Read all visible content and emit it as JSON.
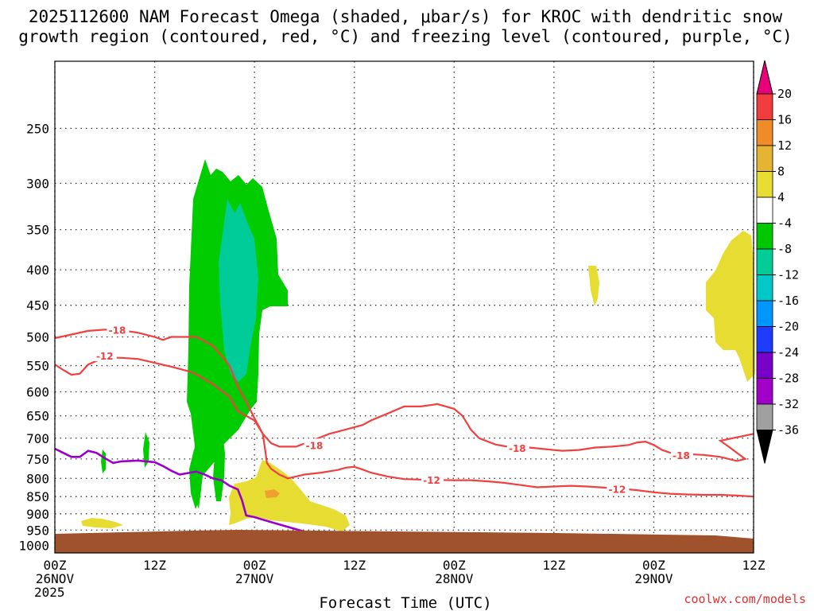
{
  "colors": {
    "ground": "#a0522d",
    "omega_dk_green": "#00cc00",
    "omega_teal": "#00cc99",
    "omega_yellow": "#e6dc32",
    "omega_orange": "#f0a030",
    "dgz_red": "#f04040",
    "freezing_purple": "#9a00c8"
  },
  "chart_data": {
    "type": "contour",
    "title": [
      "2025112600 NAM Forecast Omega (shaded, μbar/s) for KROC with dendritic snow",
      "growth region (contoured, red, °C) and freezing level (contoured, purple, °C)"
    ],
    "xlabel": "Forecast Time (UTC)",
    "ylabel": "",
    "credit": "coolwx.com/models",
    "y_axis": {
      "scale": "log-pressure",
      "ticks": [
        250,
        300,
        350,
        400,
        450,
        500,
        550,
        600,
        650,
        700,
        750,
        800,
        850,
        900,
        950,
        1000
      ],
      "range": [
        200,
        1025
      ]
    },
    "x_axis": {
      "range_hours": [
        0,
        84
      ],
      "ticks": [
        {
          "hour": 0,
          "line1": "00Z",
          "line2": "26NOV",
          "line3": "2025"
        },
        {
          "hour": 12,
          "line1": "12Z",
          "line2": "",
          "line3": ""
        },
        {
          "hour": 24,
          "line1": "00Z",
          "line2": "27NOV",
          "line3": ""
        },
        {
          "hour": 36,
          "line1": "12Z",
          "line2": "",
          "line3": ""
        },
        {
          "hour": 48,
          "line1": "00Z",
          "line2": "28NOV",
          "line3": ""
        },
        {
          "hour": 60,
          "line1": "12Z",
          "line2": "",
          "line3": ""
        },
        {
          "hour": 72,
          "line1": "00Z",
          "line2": "29NOV",
          "line3": ""
        },
        {
          "hour": 84,
          "line1": "12Z",
          "line2": "",
          "line3": ""
        }
      ]
    },
    "colorbar": {
      "labels": [
        "20",
        "16",
        "12",
        "8",
        "4",
        "-4",
        "-8",
        "-12",
        "-16",
        "-20",
        "-24",
        "-28",
        "-32",
        "-36"
      ],
      "colors": [
        "#e8007a",
        "#f03c3c",
        "#f08c28",
        "#e6b432",
        "#e6dc32",
        "#ffffff",
        "#00c800",
        "#00cc96",
        "#00c8c8",
        "#0096ff",
        "#1e3cff",
        "#7800c8",
        "#a000c8",
        "#a0a0a0",
        "#000000"
      ]
    },
    "contours": [
      {
        "name": "-18",
        "color": "#f04040",
        "points": [
          [
            0,
            502
          ],
          [
            2,
            496
          ],
          [
            4,
            490
          ],
          [
            6,
            488
          ],
          [
            8,
            489
          ],
          [
            10,
            493
          ],
          [
            12,
            500
          ],
          [
            13,
            505
          ],
          [
            14,
            500
          ],
          [
            17,
            500
          ],
          [
            19,
            515
          ],
          [
            21,
            550
          ],
          [
            22,
            590
          ],
          [
            23,
            620
          ],
          [
            24,
            655
          ],
          [
            25,
            690
          ],
          [
            26,
            712
          ],
          [
            27,
            720
          ],
          [
            29,
            720
          ],
          [
            31,
            705
          ],
          [
            33,
            690
          ],
          [
            35,
            680
          ],
          [
            37,
            670
          ],
          [
            38,
            660
          ],
          [
            40,
            645
          ],
          [
            42,
            630
          ],
          [
            44,
            630
          ],
          [
            46,
            625
          ],
          [
            48,
            635
          ],
          [
            49,
            650
          ],
          [
            50,
            680
          ],
          [
            51,
            700
          ],
          [
            53,
            715
          ],
          [
            55,
            722
          ],
          [
            57,
            722
          ],
          [
            59,
            726
          ],
          [
            61,
            730
          ],
          [
            63,
            728
          ],
          [
            65,
            722
          ],
          [
            67,
            720
          ],
          [
            69,
            716
          ],
          [
            70,
            710
          ],
          [
            71,
            708
          ],
          [
            72,
            716
          ],
          [
            73,
            728
          ],
          [
            74,
            735
          ],
          [
            76,
            738
          ],
          [
            78,
            740
          ],
          [
            80,
            745
          ],
          [
            82,
            755
          ],
          [
            83,
            750
          ],
          [
            82,
            735
          ],
          [
            81,
            720
          ],
          [
            80,
            706
          ],
          [
            82,
            698
          ],
          [
            84,
            690
          ]
        ],
        "labels": [
          {
            "x": 7.5,
            "p": 488
          },
          {
            "x": 31.2,
            "p": 716
          },
          {
            "x": 55.6,
            "p": 723
          },
          {
            "x": 75.3,
            "p": 740
          }
        ]
      },
      {
        "name": "-12",
        "color": "#f04040",
        "points": [
          [
            0,
            548
          ],
          [
            1,
            558
          ],
          [
            2,
            567
          ],
          [
            3,
            565
          ],
          [
            4,
            548
          ],
          [
            6,
            535
          ],
          [
            8,
            536
          ],
          [
            10,
            538
          ],
          [
            12,
            545
          ],
          [
            14,
            552
          ],
          [
            16,
            560
          ],
          [
            17,
            566
          ],
          [
            19,
            585
          ],
          [
            21,
            610
          ],
          [
            22,
            640
          ],
          [
            24,
            660
          ],
          [
            25,
            690
          ],
          [
            25.3,
            730
          ],
          [
            25.5,
            760
          ],
          [
            26,
            775
          ],
          [
            27,
            790
          ],
          [
            28,
            800
          ],
          [
            30,
            790
          ],
          [
            32,
            785
          ],
          [
            34,
            778
          ],
          [
            35,
            772
          ],
          [
            36,
            770
          ],
          [
            37,
            777
          ],
          [
            38,
            785
          ],
          [
            40,
            795
          ],
          [
            42,
            802
          ],
          [
            45,
            804
          ],
          [
            48,
            805
          ],
          [
            50,
            805
          ],
          [
            52,
            808
          ],
          [
            54,
            812
          ],
          [
            56,
            818
          ],
          [
            58,
            824
          ],
          [
            60,
            822
          ],
          [
            62,
            820
          ],
          [
            64,
            822
          ],
          [
            66,
            825
          ],
          [
            68,
            828
          ],
          [
            70,
            832
          ],
          [
            72,
            838
          ],
          [
            74,
            842
          ],
          [
            76,
            844
          ],
          [
            78,
            845
          ],
          [
            80,
            845
          ],
          [
            82,
            847
          ],
          [
            84,
            850
          ]
        ],
        "labels": [
          {
            "x": 6.0,
            "p": 532
          },
          {
            "x": 45.3,
            "p": 804
          },
          {
            "x": 67.6,
            "p": 828
          }
        ]
      }
    ],
    "freezing_level": {
      "name": "0",
      "color": "#9a00c8",
      "segments": [
        [
          [
            0,
            725
          ],
          [
            1,
            735
          ],
          [
            2,
            745
          ],
          [
            3,
            745
          ],
          [
            4,
            730
          ],
          [
            5,
            735
          ],
          [
            6,
            748
          ],
          [
            7,
            760
          ],
          [
            8,
            756
          ],
          [
            10,
            754
          ],
          [
            12,
            758
          ],
          [
            13,
            768
          ],
          [
            14,
            780
          ],
          [
            15,
            790
          ],
          [
            16,
            786
          ],
          [
            17,
            782
          ],
          [
            18,
            790
          ],
          [
            19,
            800
          ],
          [
            20,
            805
          ],
          [
            21,
            820
          ],
          [
            22,
            830
          ],
          [
            22.5,
            860
          ],
          [
            23,
            905
          ],
          [
            24,
            910
          ],
          [
            26,
            925
          ],
          [
            28,
            940
          ],
          [
            30,
            955
          ],
          [
            32,
            968
          ]
        ],
        [
          [
            36,
            970
          ],
          [
            38,
            962
          ],
          [
            40,
            960
          ],
          [
            42,
            960
          ],
          [
            44,
            962
          ],
          [
            46,
            965
          ],
          [
            48,
            968
          ],
          [
            50,
            975
          ]
        ],
        [
          [
            64,
            975
          ],
          [
            66,
            970
          ],
          [
            68,
            972
          ],
          [
            70,
            978
          ]
        ]
      ]
    }
  }
}
